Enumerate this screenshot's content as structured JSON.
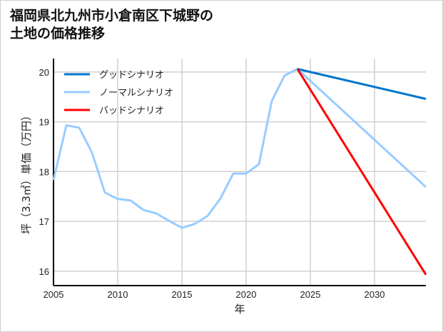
{
  "chart_data": {
    "type": "line",
    "title": "福岡県北九州市小倉南区下城野の\n土地の価格推移",
    "xlabel": "年",
    "ylabel": "坪（3.3㎡）単価（万円）",
    "xlim": [
      2005,
      2034
    ],
    "ylim": [
      15.71,
      20.27
    ],
    "xticks": [
      2005,
      2010,
      2015,
      2020,
      2025,
      2030
    ],
    "yticks": [
      16,
      17,
      18,
      19,
      20
    ],
    "grid": true,
    "legend_position": "top-left",
    "series": [
      {
        "name": "グッドシナリオ",
        "color": "#0077cc",
        "x": [
          2024,
          2034
        ],
        "y": [
          20.06,
          19.46
        ]
      },
      {
        "name": "ノーマルシナリオ",
        "color": "#99ccff",
        "x": [
          2005,
          2006,
          2007,
          2008,
          2009,
          2010,
          2011,
          2012,
          2013,
          2014,
          2015,
          2016,
          2017,
          2018,
          2019,
          2020,
          2021,
          2022,
          2023,
          2024,
          2034
        ],
        "y": [
          17.83,
          18.93,
          18.88,
          18.38,
          17.58,
          17.45,
          17.42,
          17.23,
          17.16,
          17.01,
          16.87,
          16.95,
          17.11,
          17.46,
          17.96,
          17.96,
          18.15,
          19.42,
          19.93,
          20.06,
          17.69
        ]
      },
      {
        "name": "バッドシナリオ",
        "color": "#ff0000",
        "x": [
          2024,
          2034
        ],
        "y": [
          20.06,
          15.93
        ]
      }
    ],
    "draw_order": [
      1,
      0,
      2
    ]
  }
}
